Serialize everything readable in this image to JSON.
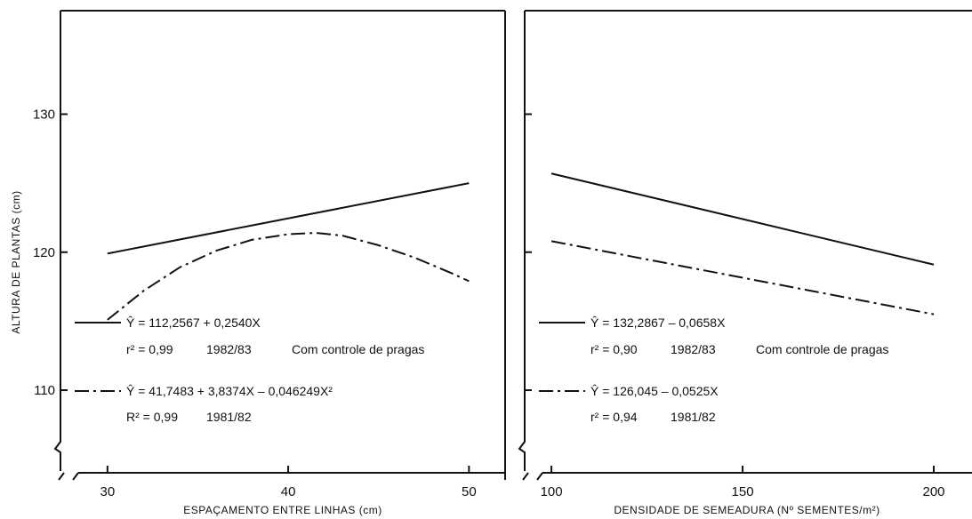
{
  "y_axis_title": "ALTURA DE PLANTAS (cm)",
  "chart_data": [
    {
      "type": "line",
      "xlabel": "ESPAÇAMENTO ENTRE LINHAS (cm)",
      "ylabel": "ALTURA DE PLANTAS (cm)",
      "xlim": [
        27.4,
        52
      ],
      "ylim": [
        103.5,
        137.5
      ],
      "x_ticks": [
        "30",
        "40",
        "50"
      ],
      "y_ticks": [
        "110",
        "120",
        "130"
      ],
      "grid": false,
      "series": [
        {
          "equation": "Ŷ = 112,2567 + 0,2540X",
          "x": [
            30,
            50
          ],
          "y": [
            119.9,
            125.0
          ]
        },
        {
          "equation": "Ŷ = 41,7483 + 3,8374X – 0,046249X²",
          "x": [
            30,
            32,
            34,
            36,
            38,
            40,
            41.5,
            43,
            45,
            47,
            49,
            50
          ],
          "y": [
            115.1,
            117.2,
            118.9,
            120.1,
            120.9,
            121.3,
            121.4,
            121.2,
            120.5,
            119.6,
            118.5,
            117.9
          ]
        }
      ],
      "legend": [
        {
          "style": "solid",
          "eq": "Ŷ = 112,2567 + 0,2540X",
          "r_label": "r² = 0,99",
          "year": "1982/83",
          "note": "Com controle de pragas"
        },
        {
          "style": "dash-dot",
          "eq": "Ŷ = 41,7483 + 3,8374X – 0,046249X²",
          "r_label": "R² = 0,99",
          "year": "1981/82",
          "note": ""
        }
      ]
    },
    {
      "type": "line",
      "xlabel": "DENSIDADE DE SEMEADURA (Nº SEMENTES/m²)",
      "xlim": [
        93,
        210
      ],
      "ylim": [
        103.5,
        137.5
      ],
      "x_ticks": [
        "100",
        "150",
        "200"
      ],
      "grid": false,
      "series": [
        {
          "equation": "Ŷ = 132,2867 – 0,0658X",
          "x": [
            100,
            200
          ],
          "y": [
            125.7,
            119.1
          ]
        },
        {
          "equation": "Ŷ = 126,045 – 0,0525X",
          "x": [
            100,
            200
          ],
          "y": [
            120.8,
            115.5
          ]
        }
      ],
      "legend": [
        {
          "style": "solid",
          "eq": "Ŷ = 132,2867 – 0,0658X",
          "r_label": "r² = 0,90",
          "year": "1982/83",
          "note": "Com controle de pragas"
        },
        {
          "style": "dash-dot",
          "eq": "Ŷ = 126,045 – 0,0525X",
          "r_label": "r² = 0,94",
          "year": "1981/82",
          "note": ""
        }
      ]
    }
  ]
}
